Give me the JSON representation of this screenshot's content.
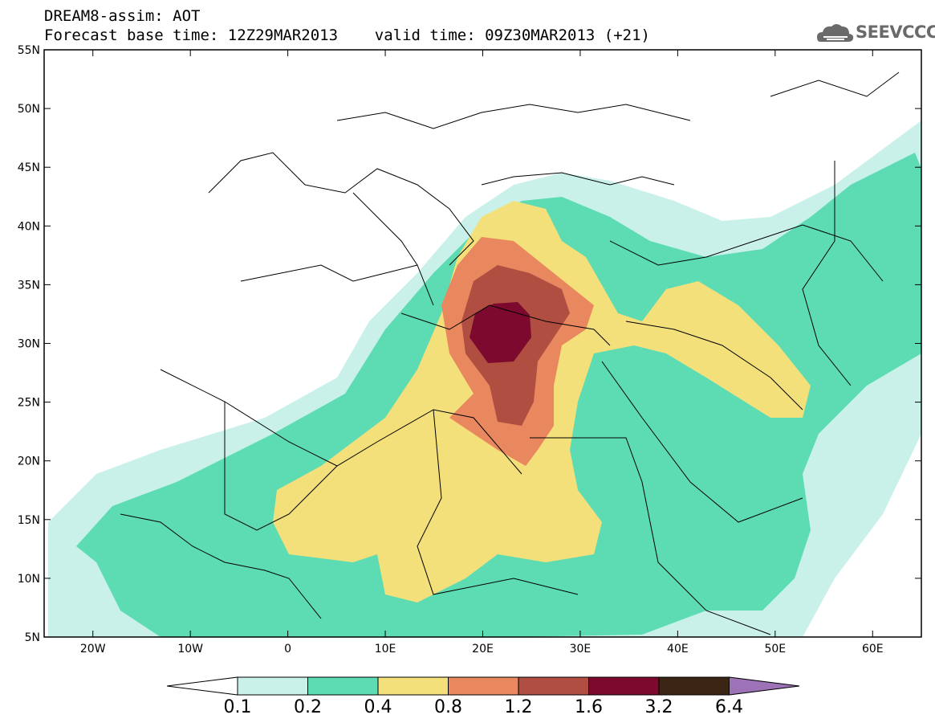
{
  "header": {
    "title_line1": "DREAM8-assim: AOT",
    "title_line2": "Forecast base time: 12Z29MAR2013    valid time: 09Z30MAR2013 (+21)"
  },
  "logo": {
    "text": "SEEVCCC",
    "icon": "cloud-icon"
  },
  "map": {
    "lat_labels": [
      "55N",
      "50N",
      "45N",
      "40N",
      "35N",
      "30N",
      "25N",
      "20N",
      "15N",
      "10N",
      "5N"
    ],
    "lon_labels": [
      "20W",
      "10W",
      "0",
      "10E",
      "20E",
      "30E",
      "40E",
      "50E",
      "60E"
    ],
    "lon_range": [
      -25,
      65
    ],
    "lat_range": [
      5,
      55
    ]
  },
  "colorbar": {
    "levels": [
      "0.1",
      "0.2",
      "0.4",
      "0.8",
      "1.2",
      "1.6",
      "3.2",
      "6.4"
    ],
    "colors": [
      "#c9f1ea",
      "#5ddcb4",
      "#f3e07a",
      "#e9875f",
      "#b04e42",
      "#7d0a2e",
      "#3b2616",
      "#9d72b6"
    ]
  }
}
